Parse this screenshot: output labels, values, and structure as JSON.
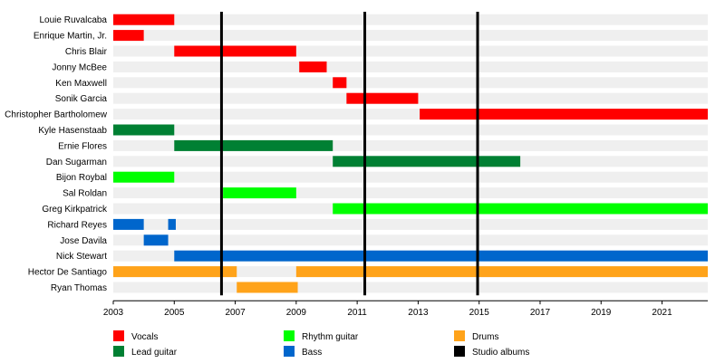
{
  "chart_data": {
    "type": "timeline",
    "title": "",
    "xlabel": "",
    "ylabel": "",
    "xlim": [
      2003,
      2022.5
    ],
    "x_ticks": [
      2003,
      2005,
      2007,
      2009,
      2011,
      2013,
      2015,
      2017,
      2019,
      2021
    ],
    "grid": "alternating row bands",
    "legend_position": "bottom",
    "members": [
      "Louie Ruvalcaba",
      "Enrique Martin, Jr.",
      "Chris Blair",
      "Jonny McBee",
      "Ken Maxwell",
      "Sonik Garcia",
      "Christopher Bartholomew",
      "Kyle Hasenstaab",
      "Ernie Flores",
      "Dan Sugarman",
      "Bijon Roybal",
      "Sal Roldan",
      "Greg Kirkpatrick",
      "Richard Reyes",
      "Jose Davila",
      "Nick Stewart",
      "Hector De Santiago",
      "Ryan Thomas"
    ],
    "roles": [
      {
        "key": "vocals",
        "label": "Vocals",
        "color": "#ff0000"
      },
      {
        "key": "lead",
        "label": "Lead guitar",
        "color": "#008033"
      },
      {
        "key": "rhythm",
        "label": "Rhythm guitar",
        "color": "#00ff00"
      },
      {
        "key": "bass",
        "label": "Bass",
        "color": "#0066cc"
      },
      {
        "key": "drums",
        "label": "Drums",
        "color": "#ffa31a"
      },
      {
        "key": "albums",
        "label": "Studio albums",
        "color": "#000000"
      }
    ],
    "bars": [
      {
        "member": 0,
        "role": "vocals",
        "start": 2003.0,
        "end": 2005.0
      },
      {
        "member": 1,
        "role": "vocals",
        "start": 2003.0,
        "end": 2004.0
      },
      {
        "member": 2,
        "role": "vocals",
        "start": 2005.0,
        "end": 2009.0
      },
      {
        "member": 3,
        "role": "vocals",
        "start": 2009.1,
        "end": 2010.0
      },
      {
        "member": 4,
        "role": "vocals",
        "start": 2010.2,
        "end": 2010.65
      },
      {
        "member": 5,
        "role": "vocals",
        "start": 2010.65,
        "end": 2013.0
      },
      {
        "member": 6,
        "role": "vocals",
        "start": 2013.05,
        "end": 2022.5
      },
      {
        "member": 7,
        "role": "lead",
        "start": 2003.0,
        "end": 2005.0
      },
      {
        "member": 8,
        "role": "lead",
        "start": 2005.0,
        "end": 2010.2
      },
      {
        "member": 9,
        "role": "lead",
        "start": 2010.2,
        "end": 2016.35
      },
      {
        "member": 10,
        "role": "rhythm",
        "start": 2003.0,
        "end": 2005.0
      },
      {
        "member": 11,
        "role": "rhythm",
        "start": 2006.6,
        "end": 2009.0
      },
      {
        "member": 12,
        "role": "rhythm",
        "start": 2010.2,
        "end": 2022.5
      },
      {
        "member": 13,
        "role": "bass",
        "start": 2003.0,
        "end": 2004.0
      },
      {
        "member": 13,
        "role": "bass",
        "start": 2004.8,
        "end": 2005.05
      },
      {
        "member": 14,
        "role": "bass",
        "start": 2004.0,
        "end": 2004.8
      },
      {
        "member": 15,
        "role": "bass",
        "start": 2005.0,
        "end": 2022.5
      },
      {
        "member": 16,
        "role": "drums",
        "start": 2003.0,
        "end": 2007.05
      },
      {
        "member": 16,
        "role": "drums",
        "start": 2009.0,
        "end": 2022.5
      },
      {
        "member": 17,
        "role": "drums",
        "start": 2007.05,
        "end": 2009.05
      }
    ],
    "studio_albums": [
      2006.55,
      2011.25,
      2014.95
    ]
  }
}
